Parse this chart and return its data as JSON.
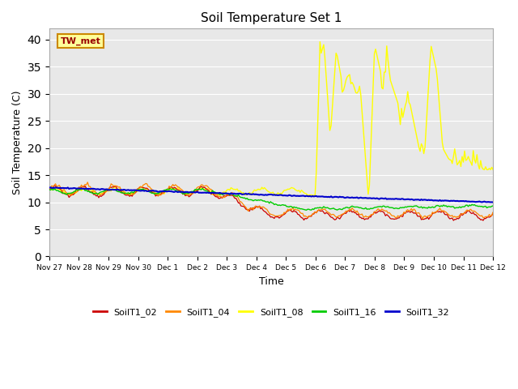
{
  "title": "Soil Temperature Set 1",
  "xlabel": "Time",
  "ylabel": "Soil Temperature (C)",
  "ylim": [
    0,
    42
  ],
  "yticks": [
    0,
    5,
    10,
    15,
    20,
    25,
    30,
    35,
    40
  ],
  "background_color": "#e8e8e8",
  "series_colors": {
    "SoilT1_02": "#cc0000",
    "SoilT1_04": "#ff8800",
    "SoilT1_08": "#ffff00",
    "SoilT1_16": "#00cc00",
    "SoilT1_32": "#0000cc"
  },
  "legend_label": "TW_met",
  "legend_box_facecolor": "#ffff99",
  "legend_box_edgecolor": "#cc8800",
  "tick_labels": [
    "Nov 27",
    "Nov 28",
    "Nov 29",
    "Nov 30",
    "Dec 1",
    "Dec 2",
    "Dec 3",
    "Dec 4",
    "Dec 5",
    "Dec 6",
    "Dec 7",
    "Dec 8",
    "Dec 9",
    "Dec 10",
    "Dec 11",
    "Dec 12"
  ]
}
